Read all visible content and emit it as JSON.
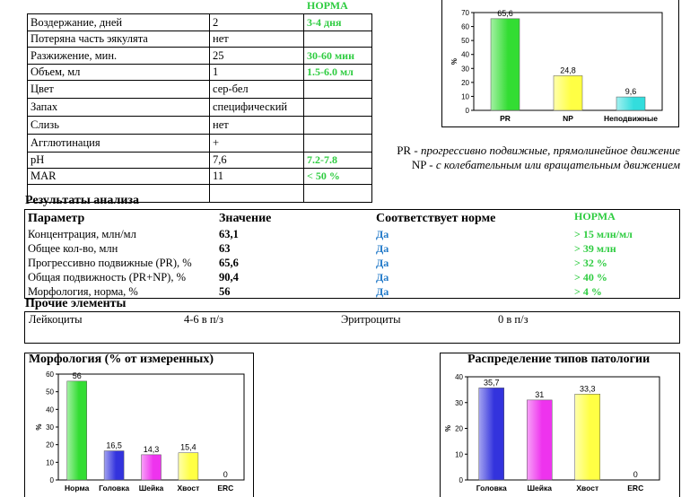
{
  "params_table": {
    "norm_header": "НОРМА",
    "rows": [
      {
        "label": "Воздержание, дней",
        "value": "2",
        "norm": "3-4 дня"
      },
      {
        "label": "Потеряна часть эякулята",
        "value": "нет",
        "norm": ""
      },
      {
        "label": "Разжижение, мин.",
        "value": "25",
        "norm": "30-60 мин"
      },
      {
        "label": "Объем, мл",
        "value": "1",
        "norm": "1.5-6.0 мл"
      },
      {
        "label": "Цвет",
        "value": "сер-бел",
        "norm": ""
      },
      {
        "label": "Запах",
        "value": "специфический",
        "norm": ""
      },
      {
        "label": "Слизь",
        "value": "нет",
        "norm": ""
      },
      {
        "label": "Агглютинация",
        "value": "+",
        "norm": ""
      },
      {
        "label": "pH",
        "value": "7,6",
        "norm": "7.2-7.8"
      },
      {
        "label": "MAR",
        "value": "11",
        "norm": "< 50 %"
      },
      {
        "label": "",
        "value": "",
        "norm": ""
      }
    ]
  },
  "motility_legend": {
    "pr_code": "PR",
    "pr_text": "прогрессивно подвижные, прямолинейное движение",
    "np_code": "NP",
    "np_text": "с колебательным или вращательным движением"
  },
  "results": {
    "title": "Результаты анализа",
    "headers": {
      "param": "Параметр",
      "value": "Значение",
      "match": "Соответствует норме",
      "norm": "НОРМА"
    },
    "rows": [
      {
        "param": "Концентрация, млн/мл",
        "value": "63,1",
        "match": "Да",
        "norm": "> 15 млн/мл"
      },
      {
        "param": "Общее кол-во, млн",
        "value": "63",
        "match": "Да",
        "norm": "> 39 млн"
      },
      {
        "param": "Прогрессивно подвижные (PR), %",
        "value": "65,6",
        "match": "Да",
        "norm": "> 32 %"
      },
      {
        "param": "Общая подвижность (PR+NP), %",
        "value": "90,4",
        "match": "Да",
        "norm": "> 40 %"
      },
      {
        "param": "Морфология, норма, %",
        "value": "56",
        "match": "Да",
        "norm": "> 4 %"
      }
    ]
  },
  "other": {
    "title": "Прочие элементы",
    "leuko_label": "Лейкоциты",
    "leuko_value": "4-6 в п/з",
    "erythro_label": "Эритроциты",
    "erythro_value": "0 в п/з"
  },
  "morph_title": "Морфология (% от измеренных)",
  "patho_title": "Распределение типов патологии",
  "chart_data": [
    {
      "type": "bar",
      "categories": [
        "PR",
        "NP",
        "Неподвижные"
      ],
      "values": [
        65.6,
        24.8,
        9.6
      ],
      "value_labels": [
        "65,6",
        "24,8",
        "9,6"
      ],
      "ylabel": "%",
      "ylim": [
        0,
        70
      ],
      "yticks": [
        0,
        10,
        20,
        30,
        40,
        50,
        60,
        70
      ],
      "colors": [
        "#33dd33",
        "#ffff44",
        "#33dddd"
      ]
    },
    {
      "type": "bar",
      "categories": [
        "Норма",
        "Головка",
        "Шейка",
        "Хвост",
        "ERC"
      ],
      "values": [
        56,
        16.5,
        14.3,
        15.4,
        0
      ],
      "value_labels": [
        "56",
        "16,5",
        "14,3",
        "15,4",
        "0"
      ],
      "ylabel": "%",
      "ylim": [
        0,
        60
      ],
      "yticks": [
        0,
        10,
        20,
        30,
        40,
        50,
        60
      ],
      "colors": [
        "#33dd33",
        "#3333dd",
        "#ee33ee",
        "#ffff44",
        "#888888"
      ]
    },
    {
      "type": "bar",
      "categories": [
        "Головка",
        "Шейка",
        "Хвост",
        "ERC"
      ],
      "values": [
        35.7,
        31,
        33.3,
        0
      ],
      "value_labels": [
        "35,7",
        "31",
        "33,3",
        "0"
      ],
      "ylabel": "%",
      "ylim": [
        0,
        40
      ],
      "yticks": [
        0,
        10,
        20,
        30,
        40
      ],
      "colors": [
        "#3333dd",
        "#ee33ee",
        "#ffff44",
        "#888888"
      ]
    }
  ]
}
